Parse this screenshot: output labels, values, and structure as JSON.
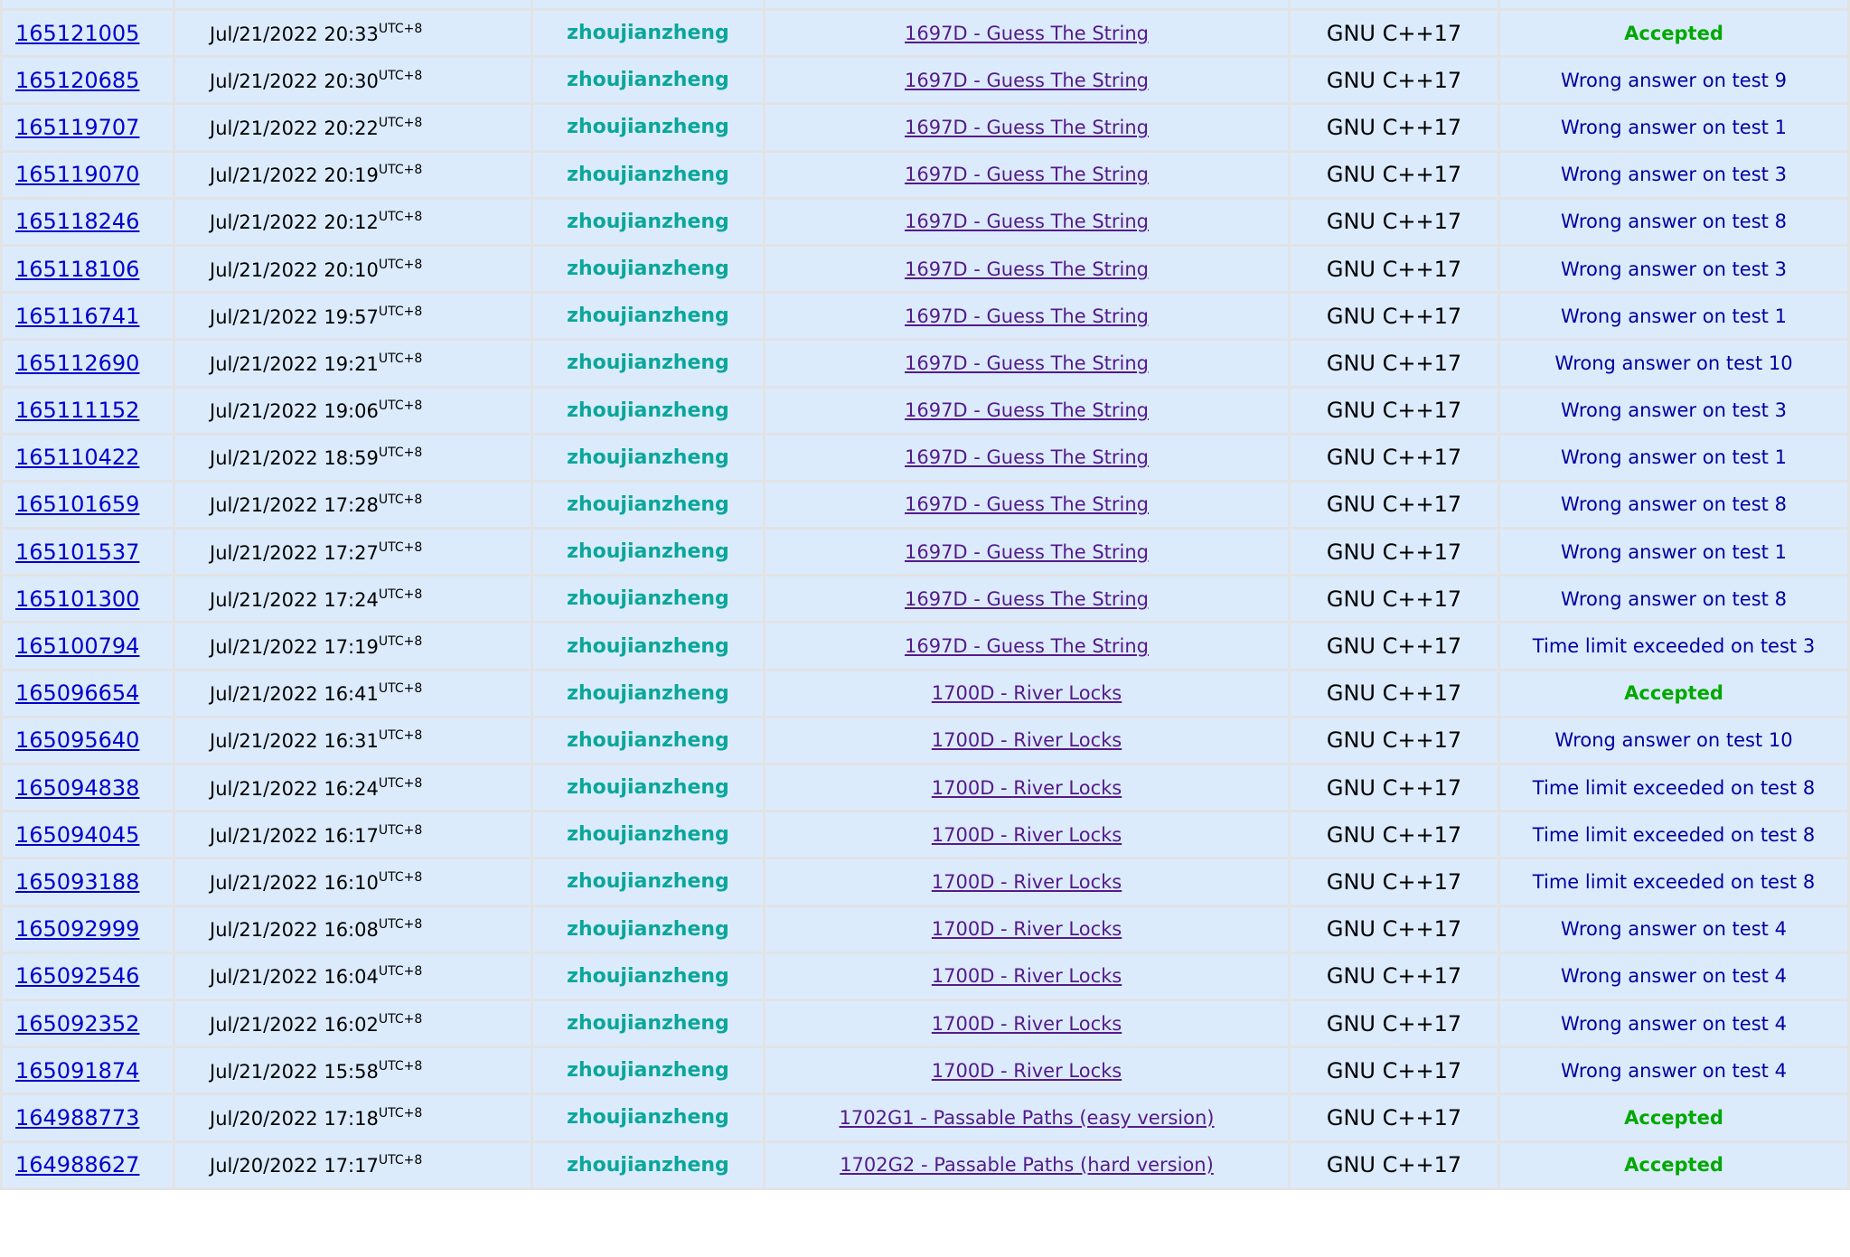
{
  "timezone": "UTC+8",
  "colors": {
    "accepted": "#00a800",
    "rejected": "#0000a0",
    "user": "#0aa69a",
    "link": "#0000cc",
    "problem": "#551a8b"
  },
  "submissions": [
    {
      "id": "165121005",
      "when": "Jul/21/2022 20:33",
      "user": "zhoujianzheng",
      "problem": "1697D - Guess The String",
      "lang": "GNU C++17",
      "verdict": "Accepted"
    },
    {
      "id": "165120685",
      "when": "Jul/21/2022 20:30",
      "user": "zhoujianzheng",
      "problem": "1697D - Guess The String",
      "lang": "GNU C++17",
      "verdict": "Wrong answer on test 9"
    },
    {
      "id": "165119707",
      "when": "Jul/21/2022 20:22",
      "user": "zhoujianzheng",
      "problem": "1697D - Guess The String",
      "lang": "GNU C++17",
      "verdict": "Wrong answer on test 1"
    },
    {
      "id": "165119070",
      "when": "Jul/21/2022 20:19",
      "user": "zhoujianzheng",
      "problem": "1697D - Guess The String",
      "lang": "GNU C++17",
      "verdict": "Wrong answer on test 3"
    },
    {
      "id": "165118246",
      "when": "Jul/21/2022 20:12",
      "user": "zhoujianzheng",
      "problem": "1697D - Guess The String",
      "lang": "GNU C++17",
      "verdict": "Wrong answer on test 8"
    },
    {
      "id": "165118106",
      "when": "Jul/21/2022 20:10",
      "user": "zhoujianzheng",
      "problem": "1697D - Guess The String",
      "lang": "GNU C++17",
      "verdict": "Wrong answer on test 3"
    },
    {
      "id": "165116741",
      "when": "Jul/21/2022 19:57",
      "user": "zhoujianzheng",
      "problem": "1697D - Guess The String",
      "lang": "GNU C++17",
      "verdict": "Wrong answer on test 1"
    },
    {
      "id": "165112690",
      "when": "Jul/21/2022 19:21",
      "user": "zhoujianzheng",
      "problem": "1697D - Guess The String",
      "lang": "GNU C++17",
      "verdict": "Wrong answer on test 10"
    },
    {
      "id": "165111152",
      "when": "Jul/21/2022 19:06",
      "user": "zhoujianzheng",
      "problem": "1697D - Guess The String",
      "lang": "GNU C++17",
      "verdict": "Wrong answer on test 3"
    },
    {
      "id": "165110422",
      "when": "Jul/21/2022 18:59",
      "user": "zhoujianzheng",
      "problem": "1697D - Guess The String",
      "lang": "GNU C++17",
      "verdict": "Wrong answer on test 1"
    },
    {
      "id": "165101659",
      "when": "Jul/21/2022 17:28",
      "user": "zhoujianzheng",
      "problem": "1697D - Guess The String",
      "lang": "GNU C++17",
      "verdict": "Wrong answer on test 8"
    },
    {
      "id": "165101537",
      "when": "Jul/21/2022 17:27",
      "user": "zhoujianzheng",
      "problem": "1697D - Guess The String",
      "lang": "GNU C++17",
      "verdict": "Wrong answer on test 1"
    },
    {
      "id": "165101300",
      "when": "Jul/21/2022 17:24",
      "user": "zhoujianzheng",
      "problem": "1697D - Guess The String",
      "lang": "GNU C++17",
      "verdict": "Wrong answer on test 8"
    },
    {
      "id": "165100794",
      "when": "Jul/21/2022 17:19",
      "user": "zhoujianzheng",
      "problem": "1697D - Guess The String",
      "lang": "GNU C++17",
      "verdict": "Time limit exceeded on test 3"
    },
    {
      "id": "165096654",
      "when": "Jul/21/2022 16:41",
      "user": "zhoujianzheng",
      "problem": "1700D - River Locks",
      "lang": "GNU C++17",
      "verdict": "Accepted"
    },
    {
      "id": "165095640",
      "when": "Jul/21/2022 16:31",
      "user": "zhoujianzheng",
      "problem": "1700D - River Locks",
      "lang": "GNU C++17",
      "verdict": "Wrong answer on test 10"
    },
    {
      "id": "165094838",
      "when": "Jul/21/2022 16:24",
      "user": "zhoujianzheng",
      "problem": "1700D - River Locks",
      "lang": "GNU C++17",
      "verdict": "Time limit exceeded on test 8"
    },
    {
      "id": "165094045",
      "when": "Jul/21/2022 16:17",
      "user": "zhoujianzheng",
      "problem": "1700D - River Locks",
      "lang": "GNU C++17",
      "verdict": "Time limit exceeded on test 8"
    },
    {
      "id": "165093188",
      "when": "Jul/21/2022 16:10",
      "user": "zhoujianzheng",
      "problem": "1700D - River Locks",
      "lang": "GNU C++17",
      "verdict": "Time limit exceeded on test 8"
    },
    {
      "id": "165092999",
      "when": "Jul/21/2022 16:08",
      "user": "zhoujianzheng",
      "problem": "1700D - River Locks",
      "lang": "GNU C++17",
      "verdict": "Wrong answer on test 4"
    },
    {
      "id": "165092546",
      "when": "Jul/21/2022 16:04",
      "user": "zhoujianzheng",
      "problem": "1700D - River Locks",
      "lang": "GNU C++17",
      "verdict": "Wrong answer on test 4"
    },
    {
      "id": "165092352",
      "when": "Jul/21/2022 16:02",
      "user": "zhoujianzheng",
      "problem": "1700D - River Locks",
      "lang": "GNU C++17",
      "verdict": "Wrong answer on test 4"
    },
    {
      "id": "165091874",
      "when": "Jul/21/2022 15:58",
      "user": "zhoujianzheng",
      "problem": "1700D - River Locks",
      "lang": "GNU C++17",
      "verdict": "Wrong answer on test 4"
    },
    {
      "id": "164988773",
      "when": "Jul/20/2022 17:18",
      "user": "zhoujianzheng",
      "problem": "1702G1 - Passable Paths (easy version)",
      "lang": "GNU C++17",
      "verdict": "Accepted"
    },
    {
      "id": "164988627",
      "when": "Jul/20/2022 17:17",
      "user": "zhoujianzheng",
      "problem": "1702G2 - Passable Paths (hard version)",
      "lang": "GNU C++17",
      "verdict": "Accepted"
    }
  ]
}
